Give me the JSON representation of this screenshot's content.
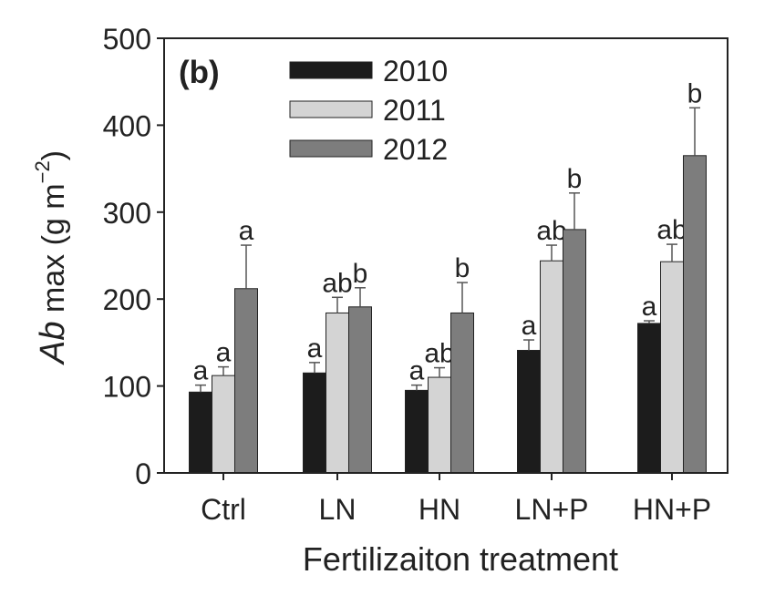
{
  "chart_data": {
    "type": "bar",
    "panel_label": "(b)",
    "categories": [
      "Ctrl",
      "LN",
      "HN",
      "LN+P",
      "HN+P"
    ],
    "xlabel": "Fertilizaiton treatment",
    "ylabel": {
      "italic": "Ab",
      "main": " max (g m",
      "sup": "−2",
      "close": ")"
    },
    "ylim": [
      0,
      500
    ],
    "yticks": [
      0,
      100,
      200,
      300,
      400,
      500
    ],
    "legend_position": "top-left",
    "grid": false,
    "series": [
      {
        "name": "2010",
        "color": "#1c1c1c",
        "values": [
          93,
          115,
          95,
          141,
          172
        ],
        "errors": [
          8,
          12,
          6,
          12,
          3
        ],
        "letters": [
          "a",
          "a",
          "a",
          "a",
          "a"
        ]
      },
      {
        "name": "2011",
        "color": "#d4d4d4",
        "values": [
          112,
          184,
          110,
          244,
          243
        ],
        "errors": [
          10,
          18,
          11,
          18,
          20
        ],
        "letters": [
          "a",
          "ab",
          "ab",
          "ab",
          "ab"
        ]
      },
      {
        "name": "2012",
        "color": "#7d7d7d",
        "values": [
          212,
          191,
          184,
          280,
          365
        ],
        "errors": [
          50,
          22,
          35,
          42,
          55
        ],
        "letters": [
          "a",
          "b",
          "b",
          "b",
          "b"
        ]
      }
    ]
  }
}
